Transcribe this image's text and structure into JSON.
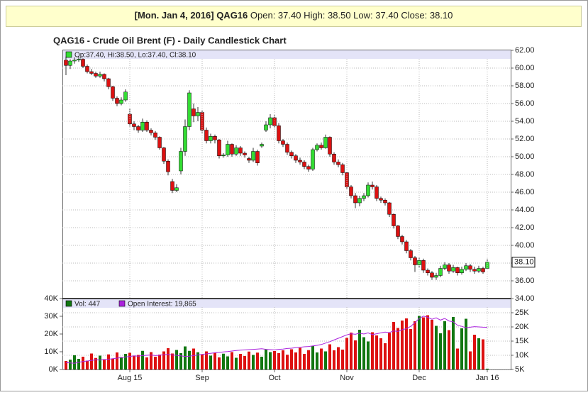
{
  "header": {
    "date_symbol": "[Mon. Jan 4, 2016] QAG16",
    "quote": "Open: 37.40 High: 38.50 Low: 37.40 Close: 38.10"
  },
  "chart_data": [
    {
      "type": "candlestick",
      "title": "QAG16 - Crude Oil Brent (F) - Daily Candlestick Chart",
      "legend": "Op:37.40, Hi:38.50, Lo:37.40, Cl:38.10",
      "up_color": "#33dd33",
      "down_color": "#dd1111",
      "grid": true,
      "ylim": [
        34,
        62
      ],
      "yticks": [
        {
          "value": 62,
          "label": "62.00"
        },
        {
          "value": 60,
          "label": "60.00"
        },
        {
          "value": 58,
          "label": "58.00"
        },
        {
          "value": 56,
          "label": "56.00"
        },
        {
          "value": 54,
          "label": "54.00"
        },
        {
          "value": 52,
          "label": "52.00"
        },
        {
          "value": 50,
          "label": "50.00"
        },
        {
          "value": 48,
          "label": "48.00"
        },
        {
          "value": 46,
          "label": "46.00"
        },
        {
          "value": 44,
          "label": "44.00"
        },
        {
          "value": 42,
          "label": "42.00"
        },
        {
          "value": 40,
          "label": "40.00"
        },
        {
          "value": 38,
          "label": "38.00"
        },
        {
          "value": 36,
          "label": "36.00"
        },
        {
          "value": 34,
          "label": "34.00"
        }
      ],
      "last_price": {
        "value": 38.1,
        "label": "38.10"
      },
      "open": [
        60.9,
        60.3,
        60.8,
        60.9,
        61.0,
        60.2,
        59.6,
        59.4,
        59.1,
        59.3,
        58.8,
        57.9,
        56.6,
        56.0,
        56.4,
        54.8,
        53.7,
        53.4,
        53.0,
        53.9,
        53.0,
        52.7,
        52.2,
        51.0,
        49.5,
        47.2,
        46.2,
        48.4,
        50.6,
        53.4,
        55.4,
        54.6,
        55.0,
        53.0,
        51.8,
        52.3,
        51.9,
        50.1,
        50.2,
        51.4,
        50.3,
        51.0,
        50.4,
        49.8,
        49.6,
        50.6,
        51.2,
        53.0,
        53.6,
        54.4,
        53.5,
        51.8,
        51.4,
        50.5,
        50.1,
        49.6,
        49.4,
        48.9,
        48.6,
        50.8,
        51.3,
        51.0,
        52.2,
        50.3,
        49.4,
        49.1,
        48.2,
        46.6,
        45.6,
        44.8,
        45.3,
        45.6,
        46.8,
        46.6,
        45.3,
        45.1,
        44.8,
        43.5,
        42.2,
        41.0,
        40.4,
        39.4,
        38.6,
        37.8,
        38.3,
        37.2,
        36.9,
        36.4,
        36.6,
        37.4,
        37.8,
        37.1,
        37.5,
        36.9,
        37.3,
        37.7,
        37.3,
        37.1,
        37.4,
        37.4
      ],
      "high": [
        61.3,
        61.0,
        61.2,
        61.3,
        61.1,
        60.4,
        59.9,
        59.6,
        59.6,
        59.4,
        58.9,
        58.0,
        56.8,
        56.7,
        57.6,
        55.4,
        54.0,
        53.6,
        54.3,
        54.1,
        53.2,
        52.9,
        52.3,
        51.1,
        49.7,
        47.5,
        46.9,
        51.0,
        54.2,
        57.5,
        56.0,
        55.6,
        55.2,
        53.3,
        52.6,
        52.5,
        52.0,
        50.4,
        51.8,
        51.5,
        51.3,
        51.2,
        50.6,
        50.0,
        51.0,
        50.8,
        51.6,
        54.0,
        54.8,
        54.7,
        53.8,
        52.0,
        51.6,
        50.7,
        50.3,
        49.9,
        49.6,
        49.1,
        51.0,
        51.5,
        51.6,
        52.5,
        52.3,
        50.5,
        49.7,
        49.3,
        48.3,
        46.8,
        45.9,
        45.6,
        45.9,
        47.1,
        47.2,
        46.8,
        45.5,
        45.3,
        44.9,
        43.6,
        42.3,
        41.2,
        40.6,
        39.6,
        38.8,
        38.6,
        38.5,
        37.4,
        37.1,
        36.9,
        37.7,
        38.1,
        38.0,
        37.8,
        37.6,
        37.6,
        38.0,
        37.9,
        37.6,
        37.7,
        37.6,
        38.5
      ],
      "low": [
        59.2,
        59.9,
        60.5,
        60.7,
        60.0,
        59.4,
        59.2,
        58.9,
        58.9,
        58.5,
        57.6,
        56.3,
        55.7,
        55.8,
        56.2,
        53.4,
        53.0,
        52.7,
        52.8,
        52.8,
        52.4,
        51.9,
        50.8,
        49.2,
        47.9,
        45.9,
        46.0,
        48.0,
        50.1,
        53.0,
        53.9,
        54.0,
        52.7,
        51.5,
        51.5,
        51.5,
        49.8,
        49.9,
        50.0,
        50.0,
        50.1,
        50.1,
        49.9,
        49.3,
        49.4,
        49.0,
        51.0,
        52.8,
        53.2,
        53.2,
        51.5,
        51.1,
        50.2,
        49.8,
        49.3,
        49.1,
        48.6,
        48.3,
        48.4,
        50.6,
        50.8,
        50.9,
        50.0,
        49.1,
        48.8,
        47.9,
        46.3,
        45.3,
        44.2,
        44.4,
        45.0,
        45.4,
        46.3,
        45.0,
        44.8,
        44.5,
        43.2,
        41.9,
        40.7,
        40.1,
        39.1,
        38.3,
        37.0,
        37.5,
        36.9,
        36.6,
        36.1,
        36.1,
        36.4,
        37.2,
        36.8,
        36.9,
        36.6,
        36.7,
        37.1,
        37.0,
        36.8,
        36.9,
        36.8,
        37.4
      ],
      "close": [
        60.3,
        60.8,
        60.9,
        61.0,
        60.2,
        59.6,
        59.4,
        59.1,
        59.3,
        58.8,
        57.9,
        56.6,
        56.0,
        56.4,
        57.3,
        53.7,
        53.4,
        53.0,
        53.9,
        53.0,
        52.7,
        52.2,
        51.0,
        49.5,
        48.3,
        46.2,
        46.5,
        50.6,
        53.4,
        57.2,
        54.6,
        55.0,
        53.0,
        51.8,
        52.3,
        51.9,
        50.1,
        50.2,
        51.4,
        50.3,
        51.0,
        50.4,
        50.2,
        49.6,
        50.6,
        49.3,
        51.4,
        53.6,
        54.4,
        53.5,
        51.8,
        51.4,
        50.5,
        50.1,
        49.6,
        49.4,
        48.9,
        48.6,
        50.8,
        51.3,
        51.0,
        52.2,
        50.3,
        49.4,
        49.1,
        48.2,
        46.6,
        45.6,
        44.8,
        45.3,
        45.6,
        46.8,
        46.6,
        45.3,
        45.1,
        44.8,
        43.5,
        42.2,
        41.0,
        40.4,
        39.4,
        38.6,
        37.8,
        38.3,
        37.2,
        36.9,
        36.4,
        36.6,
        37.4,
        37.8,
        37.1,
        37.5,
        36.9,
        37.3,
        37.7,
        37.3,
        37.1,
        37.4,
        37.0,
        38.1
      ]
    },
    {
      "type": "volume",
      "categories": [
        null,
        null,
        null,
        null,
        null,
        null,
        null,
        null,
        null,
        null,
        null,
        null,
        null,
        null,
        null,
        "Aug 15",
        null,
        null,
        null,
        null,
        null,
        null,
        null,
        null,
        null,
        null,
        null,
        null,
        null,
        null,
        null,
        null,
        "Sep",
        null,
        null,
        null,
        null,
        null,
        null,
        null,
        null,
        null,
        null,
        null,
        null,
        null,
        null,
        null,
        null,
        "Oct",
        null,
        null,
        null,
        null,
        null,
        null,
        null,
        null,
        null,
        null,
        null,
        null,
        null,
        null,
        null,
        null,
        "Nov",
        null,
        null,
        null,
        null,
        null,
        null,
        null,
        null,
        null,
        null,
        null,
        null,
        null,
        null,
        null,
        null,
        "Dec",
        null,
        null,
        null,
        null,
        null,
        null,
        null,
        null,
        null,
        null,
        null,
        null,
        null,
        null,
        null,
        "Jan 16"
      ],
      "ylim": [
        0,
        40000
      ],
      "yticks": [
        {
          "value": 0,
          "label": "0K"
        },
        {
          "value": 10000,
          "label": "10K"
        },
        {
          "value": 20000,
          "label": "20K"
        },
        {
          "value": 30000,
          "label": "30K"
        },
        {
          "value": 40000,
          "label": "40K"
        }
      ],
      "y2lim": [
        5000,
        30000
      ],
      "y2ticks": [
        {
          "value": 5000,
          "label": "5K"
        },
        {
          "value": 10000,
          "label": "10K"
        },
        {
          "value": 15000,
          "label": "15K"
        },
        {
          "value": 20000,
          "label": "20K"
        },
        {
          "value": 25000,
          "label": "25K"
        }
      ],
      "series": [
        {
          "name": "Vol: 447",
          "color": "#117711",
          "values": [
            4800,
            5500,
            8000,
            6000,
            7200,
            5000,
            9000,
            6500,
            7800,
            5800,
            8500,
            6200,
            9600,
            7000,
            8800,
            9400,
            7600,
            8200,
            10500,
            6800,
            9800,
            7200,
            8400,
            10200,
            12000,
            9000,
            11000,
            9200,
            13000,
            10500,
            11800,
            9700,
            8600,
            10200,
            7800,
            9400,
            6800,
            8900,
            7400,
            9800,
            6600,
            8800,
            7600,
            10100,
            8200,
            9500,
            7200,
            11300,
            9800,
            10400,
            9200,
            10800,
            8300,
            11400,
            9600,
            12200,
            8800,
            10900,
            13300,
            9600,
            11800,
            10200,
            14200,
            10800,
            12600,
            11200,
            17800,
            20800,
            16400,
            22400,
            18200,
            15800,
            21000,
            19200,
            17600,
            14800,
            20600,
            26800,
            23400,
            27600,
            28800,
            22800,
            27200,
            30200,
            29400,
            30600,
            28000,
            24600,
            20400,
            27200,
            22200,
            29600,
            11800,
            23200,
            28600,
            10200,
            19600,
            17600,
            17000,
            447
          ]
        },
        {
          "name": "Open Interest: 19,865",
          "color": "#aa22dd",
          "axis": "y2",
          "values": [
            7400,
            7300,
            7200,
            7500,
            7800,
            8000,
            8200,
            8400,
            8300,
            8500,
            8600,
            8800,
            9000,
            9200,
            9400,
            9600,
            9800,
            9700,
            9900,
            10000,
            10100,
            9900,
            10000,
            10200,
            10300,
            10100,
            10000,
            9800,
            9600,
            9700,
            9900,
            10100,
            10300,
            10500,
            10700,
            10900,
            11000,
            11200,
            11300,
            11500,
            11700,
            11800,
            11900,
            12000,
            12100,
            12200,
            12300,
            12100,
            12000,
            11900,
            12100,
            12200,
            12400,
            12500,
            12700,
            12800,
            13000,
            13100,
            13300,
            13500,
            13800,
            14300,
            14800,
            15400,
            16000,
            16600,
            17200,
            17600,
            17400,
            17800,
            17500,
            17900,
            17300,
            17600,
            17900,
            18200,
            18000,
            18600,
            18400,
            19000,
            19400,
            20200,
            21500,
            23000,
            23800,
            23400,
            22700,
            23200,
            22400,
            23000,
            22100,
            21800,
            20600,
            20200,
            19700,
            19900,
            20100,
            20000,
            19900,
            19865
          ]
        }
      ]
    }
  ]
}
